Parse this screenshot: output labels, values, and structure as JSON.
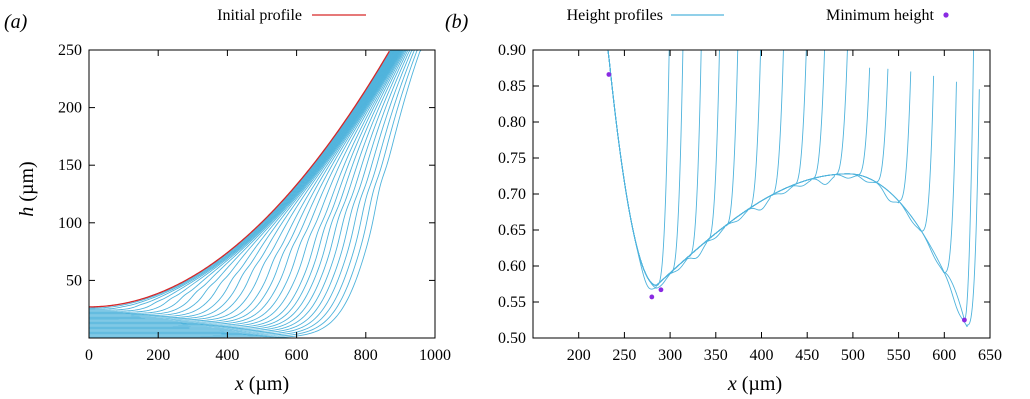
{
  "colors": {
    "initial_profile": "#d62728",
    "height_profiles": "#4fb3dc",
    "minimum_height": "#8a2be2",
    "axis": "#000000"
  },
  "chart_data": [
    {
      "type": "line",
      "panel_label": "(a)",
      "xlabel": "x (µm)",
      "ylabel": "h (µm)",
      "xlabel_var": "x",
      "xlabel_unit": " (µm)",
      "ylabel_var": "h",
      "ylabel_unit": " (µm)",
      "xlim": [
        0,
        1000
      ],
      "ylim": [
        0,
        250
      ],
      "xticks": [
        0,
        200,
        400,
        600,
        800,
        1000
      ],
      "yticks": [
        50,
        100,
        150,
        200,
        250
      ],
      "legend": [
        {
          "label": "Initial profile",
          "marker": "line"
        }
      ],
      "legend_position": "top",
      "series": [
        {
          "name": "Initial profile",
          "shape": "parabola",
          "h0": 27,
          "reach_x": 870,
          "ymax": 250
        },
        {
          "name": "Height profiles",
          "count": 28,
          "note_values": "contact points (µm)",
          "contact_x": [
            30,
            80,
            130,
            175,
            215,
            255,
            290,
            325,
            360,
            395,
            425,
            455,
            485,
            515,
            540,
            565,
            590,
            615,
            640,
            660,
            680,
            700,
            720,
            740,
            760,
            780,
            800,
            820
          ]
        }
      ]
    },
    {
      "type": "line",
      "panel_label": "(b)",
      "xlabel": "x (µm)",
      "xlabel_var": "x",
      "xlabel_unit": " (µm)",
      "xlim": [
        150,
        650
      ],
      "ylim": [
        0.5,
        0.9
      ],
      "xticks": [
        200,
        250,
        300,
        350,
        400,
        450,
        500,
        550,
        600,
        650
      ],
      "yticks": [
        0.5,
        0.55,
        0.6,
        0.65,
        0.7,
        0.75,
        0.8,
        0.85,
        0.9
      ],
      "ytick_labels": [
        "0.50",
        "0.55",
        "0.60",
        "0.65",
        "0.70",
        "0.75",
        "0.80",
        "0.85",
        "0.90"
      ],
      "legend": [
        {
          "label": "Height profiles",
          "marker": "line"
        },
        {
          "label": "Minimum height",
          "marker": "dot"
        }
      ],
      "legend_position": "top",
      "series": [
        {
          "name": "Height profiles",
          "front_x": [
            285,
            300,
            320,
            340,
            360,
            385,
            410,
            435,
            455,
            480,
            505,
            525,
            550,
            575,
            600,
            625
          ]
        },
        {
          "name": "Minimum height",
          "points": [
            {
              "x": 233,
              "y": 0.866
            },
            {
              "x": 280,
              "y": 0.557
            },
            {
              "x": 290,
              "y": 0.567
            },
            {
              "x": 622,
              "y": 0.525
            }
          ]
        }
      ]
    }
  ]
}
